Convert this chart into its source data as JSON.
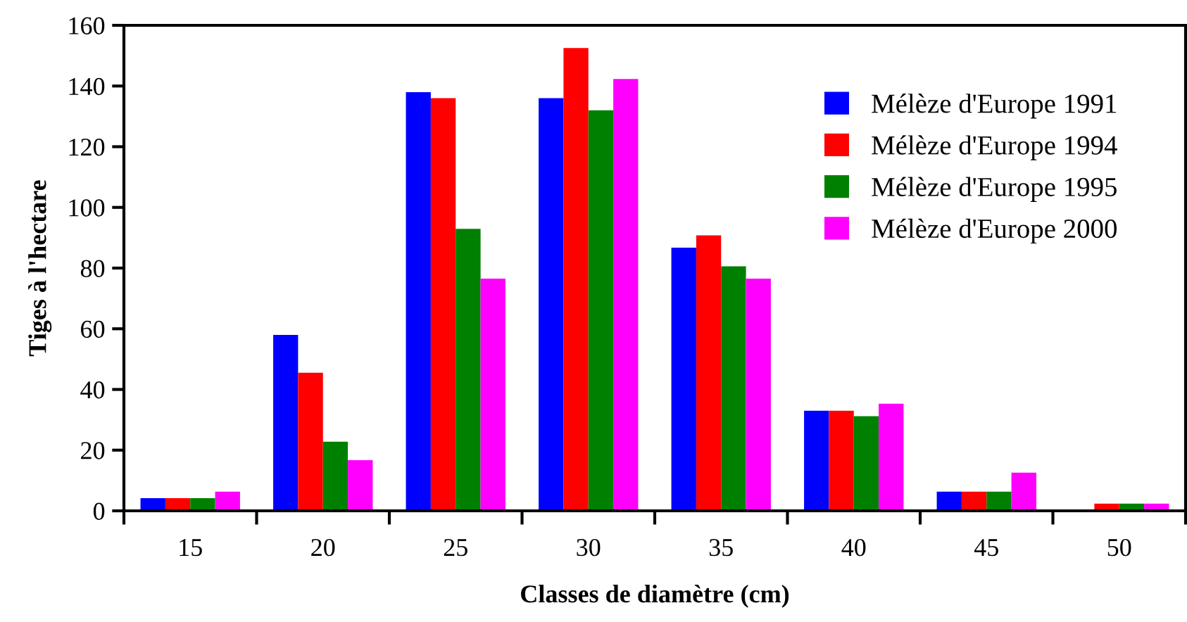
{
  "chart_data": {
    "type": "bar",
    "xlabel": "Classes de diamètre (cm)",
    "ylabel": "Tiges à l'hectare",
    "categories": [
      "15",
      "20",
      "25",
      "30",
      "35",
      "40",
      "45",
      "50"
    ],
    "series": [
      {
        "name": "Mélèze d'Europe 1991",
        "color": "#0000ff",
        "values": [
          4.2,
          58,
          138,
          136,
          86.7,
          33,
          6.3,
          0
        ]
      },
      {
        "name": "Mélèze d'Europe 1994",
        "color": "#ff0000",
        "values": [
          4.2,
          45.5,
          136,
          152.5,
          90.8,
          33,
          6.3,
          2.4
        ]
      },
      {
        "name": "Mélèze d'Europe 1995",
        "color": "#008000",
        "values": [
          4.2,
          22.8,
          92.9,
          132,
          80.6,
          31.2,
          6.3,
          2.4
        ]
      },
      {
        "name": "Mélèze d'Europe 2000",
        "color": "#ff00ff",
        "values": [
          6.3,
          16.7,
          76.5,
          142.3,
          76.5,
          35.3,
          12.6,
          2.4
        ]
      }
    ],
    "ylim": [
      0,
      160
    ],
    "yticks": [
      0,
      20,
      40,
      60,
      80,
      100,
      120,
      140,
      160
    ],
    "legend": "top right",
    "grid": false
  }
}
